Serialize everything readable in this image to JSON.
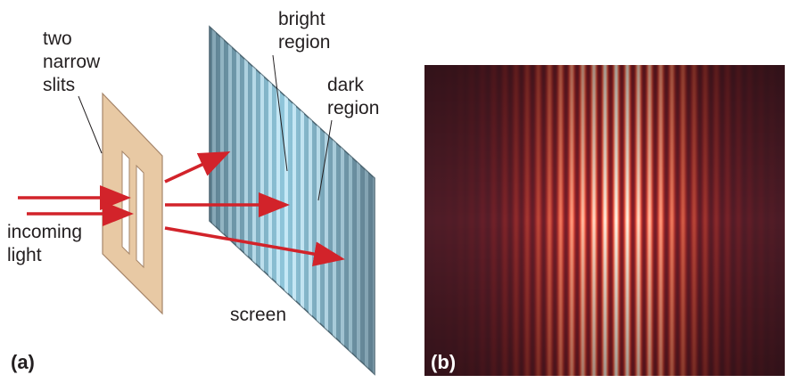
{
  "panel_a": {
    "tag": "(a)",
    "slits_label": [
      "two",
      "narrow",
      "slits"
    ],
    "bright_label": [
      "bright",
      "region"
    ],
    "dark_label": [
      "dark",
      "region"
    ],
    "incoming_label": [
      "incoming",
      "light"
    ],
    "screen_label": "screen"
  },
  "panel_b": {
    "tag": "(b)"
  }
}
